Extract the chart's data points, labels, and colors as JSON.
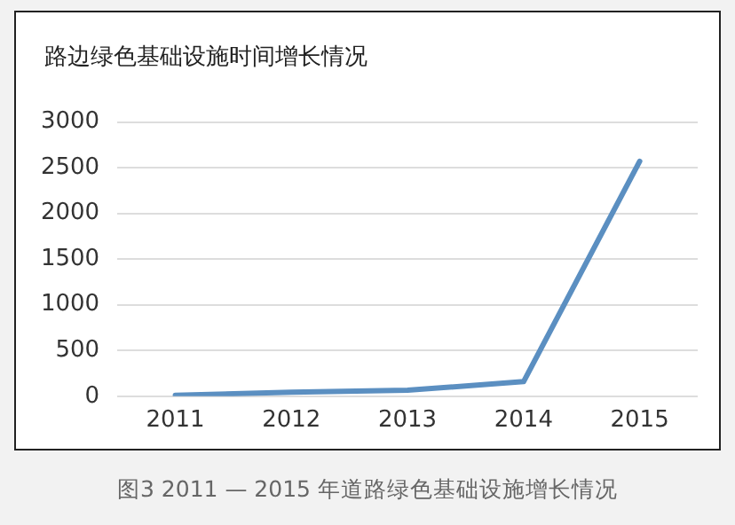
{
  "chart_data": {
    "type": "line",
    "title": "路边绿色基础设施时间增长情况",
    "categories": [
      "2011",
      "2012",
      "2013",
      "2014",
      "2015"
    ],
    "series": [
      {
        "color": "#5b8fc1",
        "values": [
          10,
          45,
          65,
          160,
          2570
        ]
      }
    ],
    "ylim": [
      0,
      3000
    ],
    "yticks": [
      0,
      500,
      1000,
      1500,
      2000,
      2500,
      3000
    ],
    "grid": "y",
    "legend": false,
    "marker": "none",
    "line_style": "solid",
    "annotations": [
      "图3 2011 — 2015 年道路绿色基础设施增长情况"
    ]
  }
}
